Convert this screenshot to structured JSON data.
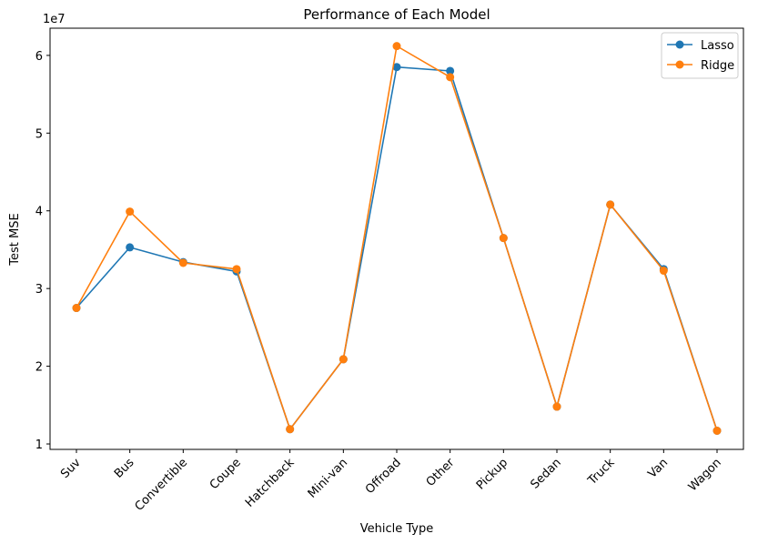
{
  "chart_data": {
    "type": "line",
    "title": "Performance of Each Model",
    "xlabel": "Vehicle Type",
    "ylabel": "Test MSE",
    "y_multiplier_label": "1e7",
    "categories": [
      "Suv",
      "Bus",
      "Convertible",
      "Coupe",
      "Hatchback",
      "Mini-van",
      "Offroad",
      "Other",
      "Pickup",
      "Sedan",
      "Truck",
      "Van",
      "Wagon"
    ],
    "yticks": [
      1,
      2,
      3,
      4,
      5,
      6
    ],
    "ytick_labels": [
      "1",
      "2",
      "3",
      "4",
      "5",
      "6"
    ],
    "ylim": [
      0.93,
      6.35
    ],
    "legend_position": "top-right",
    "grid": false,
    "series": [
      {
        "name": "Lasso",
        "color": "#1f77b4",
        "marker": "circle",
        "values": [
          2.75,
          3.53,
          3.34,
          3.22,
          1.19,
          2.09,
          5.85,
          5.8,
          3.65,
          1.48,
          4.08,
          3.25,
          1.17
        ]
      },
      {
        "name": "Ridge",
        "color": "#ff7f0e",
        "marker": "circle",
        "values": [
          2.75,
          3.99,
          3.33,
          3.25,
          1.19,
          2.09,
          6.12,
          5.72,
          3.65,
          1.48,
          4.08,
          3.23,
          1.17
        ]
      }
    ]
  }
}
